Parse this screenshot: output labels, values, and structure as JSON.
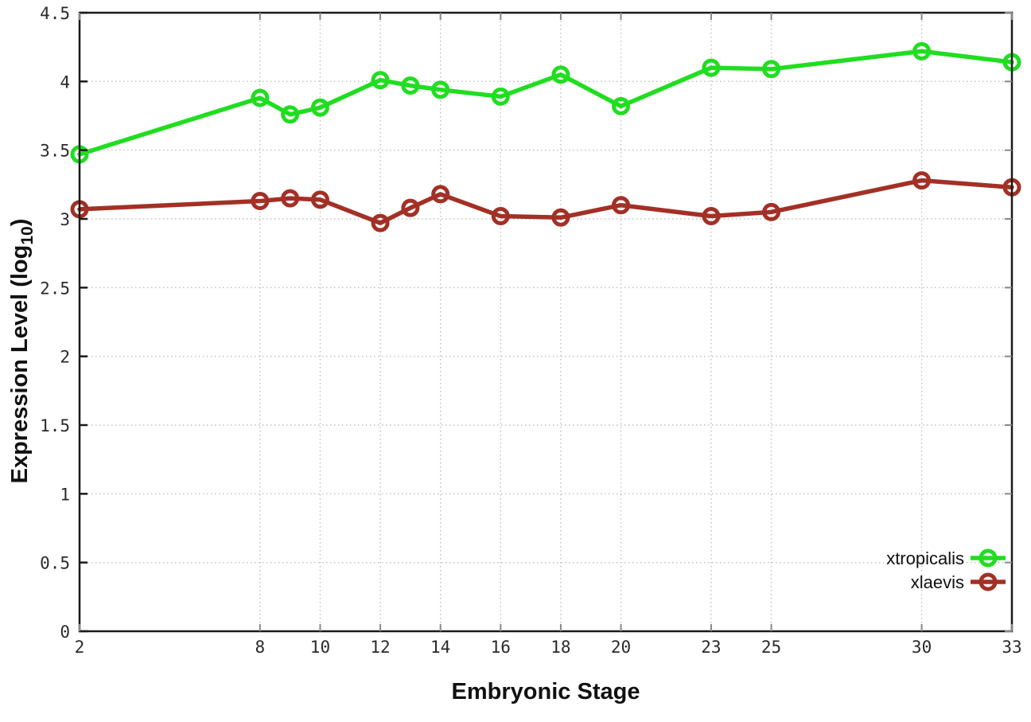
{
  "chart_data": {
    "type": "line",
    "title": "",
    "xlabel": "Embryonic Stage",
    "ylabel": "Expression Level (log10)",
    "ylabel_parts": {
      "main": "Expression Level (log",
      "sub": "10",
      "close": ")"
    },
    "x": [
      2,
      8,
      9,
      10,
      12,
      13,
      14,
      16,
      18,
      20,
      23,
      25,
      30,
      33
    ],
    "series": [
      {
        "name": "xtropicalis",
        "color": "#21dd21",
        "values": [
          3.47,
          3.88,
          3.76,
          3.81,
          4.01,
          3.97,
          3.94,
          3.89,
          4.05,
          3.82,
          4.1,
          4.09,
          4.22,
          4.14
        ]
      },
      {
        "name": "xlaevis",
        "color": "#a33026",
        "values": [
          3.07,
          3.13,
          3.15,
          3.14,
          2.97,
          3.08,
          3.18,
          3.02,
          3.01,
          3.1,
          3.02,
          3.05,
          3.28,
          3.23
        ]
      }
    ],
    "xlim": [
      2,
      33
    ],
    "ylim": [
      0,
      4.5
    ],
    "xticks": {
      "values": [
        2,
        8,
        10,
        12,
        14,
        16,
        18,
        20,
        23,
        25,
        30,
        33
      ],
      "labels": [
        "2",
        "8",
        "10",
        "12",
        "14",
        "16",
        "18",
        "20",
        "23",
        "25",
        "30",
        "33"
      ]
    },
    "yticks": {
      "values": [
        0,
        0.5,
        1,
        1.5,
        2,
        2.5,
        3,
        3.5,
        4,
        4.5
      ],
      "labels": [
        "0",
        "0.5",
        "1",
        "1.5",
        "2",
        "2.5",
        "3",
        "3.5",
        "4",
        "4.5"
      ]
    },
    "grid": true,
    "legend_position": "bottom-right",
    "colors": {
      "axis_border": "#1a1a1a",
      "grid": "#bfbfbf",
      "minor_tick": "#888888",
      "tick_label": "#2a2a2a",
      "marker_fill": "none",
      "background": "#ffffff"
    }
  }
}
